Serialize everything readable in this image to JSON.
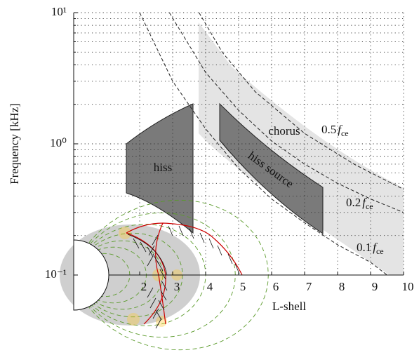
{
  "chart_data": {
    "type": "line",
    "ylabel": "Frequency [kHz]",
    "xlabel": "L-shell",
    "xlim": [
      0,
      10
    ],
    "xticks": [
      2,
      3,
      4,
      5,
      6,
      7,
      8,
      9,
      10
    ],
    "ylim": [
      0.1,
      10
    ],
    "log_y": true,
    "yticks": [
      {
        "value": 0.1,
        "label": "10⁻¹"
      },
      {
        "value": 1,
        "label": "10⁰"
      },
      {
        "value": 10,
        "label": "10¹"
      }
    ],
    "yminorticks": [
      0.2,
      0.3,
      0.4,
      0.5,
      0.6,
      0.7,
      0.8,
      0.9,
      2,
      3,
      4,
      5,
      6,
      7,
      8,
      9
    ],
    "grid": true,
    "curve_symbol": "f",
    "curve_subscript": "ce",
    "series": [
      {
        "name": "0.5",
        "color": "#222222",
        "x": [
          3.8,
          4.5,
          5.5,
          7,
          8.5,
          10
        ],
        "values": [
          10,
          5,
          2.5,
          1.2,
          0.7,
          0.45
        ]
      },
      {
        "name": "0.2",
        "color": "#222222",
        "x": [
          2.9,
          4,
          5,
          6,
          7,
          8,
          9,
          10
        ],
        "values": [
          10,
          3.5,
          1.8,
          1.05,
          0.7,
          0.5,
          0.38,
          0.3
        ]
      },
      {
        "name": "0.1",
        "color": "#222222",
        "x": [
          2,
          3,
          4,
          5,
          6,
          7,
          8,
          9,
          9.5
        ],
        "values": [
          10,
          3,
          1.3,
          0.65,
          0.38,
          0.25,
          0.17,
          0.125,
          0.1
        ]
      }
    ],
    "annotations": [
      "chorus",
      "hiss",
      "hiss source"
    ]
  }
}
